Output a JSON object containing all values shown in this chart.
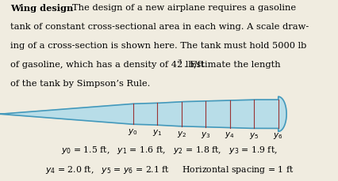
{
  "wing_fill_color": "#b8dde8",
  "wing_edge_color": "#4499bb",
  "divider_color": "#993333",
  "bg_color": "#f0ece0",
  "y_labels": [
    "$y_0$",
    "$y_1$",
    "$y_2$",
    "$y_3$",
    "$y_4$",
    "$y_5$",
    "$y_6$"
  ],
  "caption_line1": "$y_0$ = 1.5 ft,   $y_1$ = 1.6 ft,   $y_2$ = 1.8 ft,   $y_3$ = 1.9 ft,",
  "caption_line2": "$y_4$ = 2.0 ft,   $y_5$ = $y_6$ = 2.1 ft     Horizontal spacing = 1 ft",
  "text_bold": "Wing design",
  "text_body": "   The design of a new airplane requires a gasoline tank of constant cross-sectional area in each wing. A scale draw-ing of a cross-section is shown here. The tank must hold 5000 lb of gasoline, which has a density of 42 lb/ft³. Estimate the length of the tank by Simpson’s Rule."
}
